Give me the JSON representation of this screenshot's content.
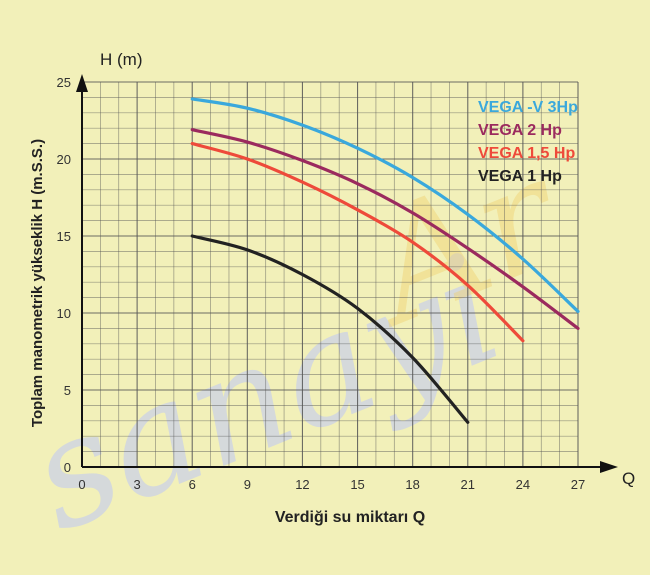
{
  "chart_data": {
    "type": "line",
    "title": "",
    "xlabel": "Verdiği su miktarı Q",
    "ylabel": "Toplam manometrik yükseklik H (m.S.S.)",
    "x_axis_symbol": "Q",
    "y_axis_symbol": "H (m)",
    "xlim": [
      0,
      27
    ],
    "ylim": [
      0,
      25
    ],
    "x_ticks": [
      "0",
      "3",
      "6",
      "9",
      "12",
      "15",
      "18",
      "21",
      "24",
      "27"
    ],
    "y_ticks": [
      "0",
      "5",
      "10",
      "15",
      "20",
      "25"
    ],
    "grid": true,
    "legend_position": "top-right",
    "series": [
      {
        "name": "VEGA -V 3Hp",
        "color": "#3aa8dc",
        "x": [
          6,
          9,
          12,
          15,
          18,
          21,
          24,
          27
        ],
        "y": [
          23.9,
          23.3,
          22.2,
          20.7,
          18.8,
          16.4,
          13.5,
          10.1
        ]
      },
      {
        "name": "VEGA 2 Hp",
        "color": "#9b2a5e",
        "x": [
          6,
          9,
          12,
          15,
          18,
          21,
          24,
          27
        ],
        "y": [
          21.9,
          21.1,
          19.9,
          18.4,
          16.5,
          14.2,
          11.7,
          9.0
        ]
      },
      {
        "name": "VEGA 1,5 Hp",
        "color": "#ee4a3a",
        "x": [
          6,
          9,
          12,
          15,
          18,
          21,
          24
        ],
        "y": [
          21.0,
          20.0,
          18.5,
          16.7,
          14.6,
          11.8,
          8.2
        ]
      },
      {
        "name": "VEGA 1 Hp",
        "color": "#222222",
        "x": [
          6,
          9,
          12,
          15,
          18,
          21
        ],
        "y": [
          15.0,
          14.1,
          12.5,
          10.3,
          7.1,
          2.9
        ]
      }
    ]
  },
  "watermark": {
    "text": "sanayiAr",
    "colors": [
      "#cdd3e3",
      "#f0d070"
    ]
  }
}
